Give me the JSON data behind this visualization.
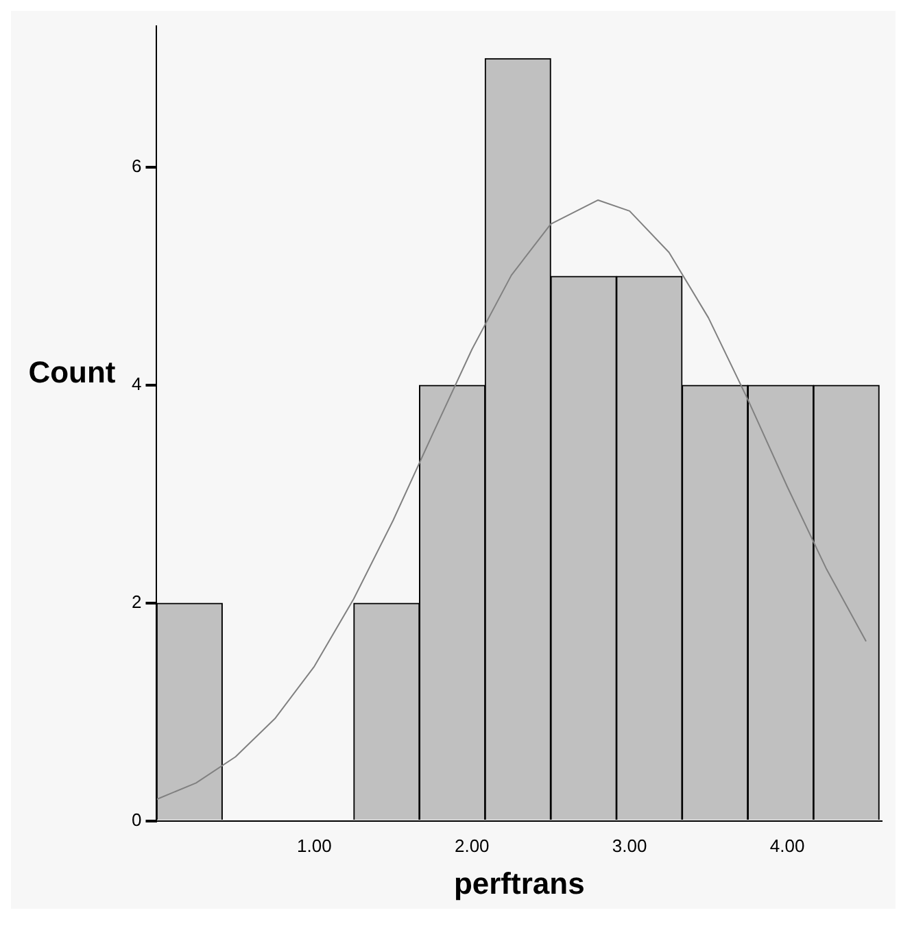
{
  "chart_data": {
    "type": "histogram",
    "xlabel": "perftrans",
    "ylabel": "Count",
    "bins": [
      0,
      0.417,
      0.833,
      1.25,
      1.667,
      2.083,
      2.5,
      2.917,
      3.333,
      3.75,
      4.167,
      4.583
    ],
    "values": [
      2,
      0,
      0,
      2,
      4,
      7,
      5,
      5,
      4,
      4,
      4
    ],
    "color": "#c0c0c0",
    "series": [
      {
        "type": "line",
        "color": "#808080",
        "x": [
          0,
          0.25,
          0.5,
          0.75,
          1,
          1.25,
          1.5,
          1.75,
          2,
          2.25,
          2.5,
          2.8,
          3,
          3.25,
          3.5,
          3.75,
          4,
          4.25,
          4.5
        ],
        "values": [
          0.2,
          0.35,
          0.59,
          0.94,
          1.42,
          2.04,
          2.76,
          3.55,
          4.33,
          5.01,
          5.48,
          5.7,
          5.6,
          5.22,
          4.62,
          3.87,
          3.07,
          2.31,
          1.65
        ]
      }
    ],
    "xlim": [
      0,
      4.6
    ],
    "ylim": [
      0,
      7.3
    ],
    "xticks": [
      {
        "value": 1,
        "label": "1.00"
      },
      {
        "value": 2,
        "label": "2.00"
      },
      {
        "value": 3,
        "label": "3.00"
      },
      {
        "value": 4,
        "label": "4.00"
      }
    ],
    "yticks": [
      0,
      2,
      4,
      6
    ],
    "grid": false,
    "legend": false,
    "marker": "none",
    "line_style": "solid"
  }
}
